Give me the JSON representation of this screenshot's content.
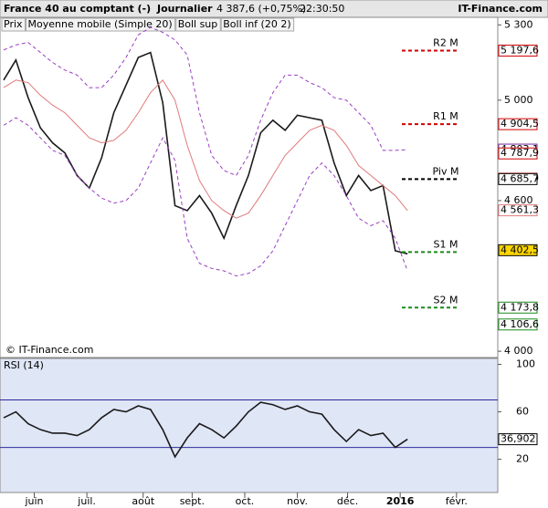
{
  "header": {
    "title": "France 40 au comptant (-)",
    "period": "Journalier",
    "quote": "4 387,6 (+0,75%)",
    "time": "22:30:50",
    "site": "IT-Finance.com"
  },
  "chart_data": [
    {
      "type": "line",
      "watermark": "© IT-Finance.com",
      "xlim": [
        0,
        40
      ],
      "xticks": [
        {
          "value": 2.5,
          "label": "juin"
        },
        {
          "value": 6.8,
          "label": "juil."
        },
        {
          "value": 11.4,
          "label": "août"
        },
        {
          "value": 15.4,
          "label": "sept."
        },
        {
          "value": 19.7,
          "label": "oct."
        },
        {
          "value": 24,
          "label": "nov."
        },
        {
          "value": 28.1,
          "label": "déc."
        },
        {
          "value": 32.4,
          "label": "2016"
        },
        {
          "value": 37,
          "label": "févr."
        }
      ],
      "ylim": [
        3975,
        5330
      ],
      "yticks": [
        {
          "value": 5300,
          "label": "5 300"
        },
        {
          "value": 5000,
          "label": "5 000"
        },
        {
          "value": 4600,
          "label": "4 600"
        },
        {
          "value": 4000,
          "label": "4 000"
        }
      ],
      "series": [
        {
          "name": "Prix",
          "color": "#1a1a1a",
          "values": [
            5080,
            5160,
            5010,
            4890,
            4830,
            4790,
            4700,
            4650,
            4770,
            4950,
            5060,
            5170,
            5190,
            4990,
            4580,
            4560,
            4620,
            4550,
            4450,
            4580,
            4700,
            4870,
            4920,
            4880,
            4940,
            4930,
            4920,
            4750,
            4620,
            4700,
            4640,
            4660,
            4400,
            4388
          ]
        },
        {
          "name": "Moyenne mobile (Simple 20)",
          "color": "#e07a7a",
          "values": [
            5050,
            5080,
            5070,
            5020,
            4980,
            4950,
            4900,
            4850,
            4830,
            4840,
            4880,
            4950,
            5030,
            5080,
            5000,
            4820,
            4680,
            4600,
            4560,
            4530,
            4550,
            4620,
            4700,
            4780,
            4830,
            4880,
            4900,
            4880,
            4820,
            4740,
            4700,
            4660,
            4620,
            4560
          ]
        },
        {
          "name": "Boll sup",
          "color": "#9a3fc0",
          "values": [
            5200,
            5220,
            5230,
            5190,
            5150,
            5120,
            5100,
            5050,
            5050,
            5100,
            5170,
            5260,
            5290,
            5270,
            5240,
            5180,
            4950,
            4780,
            4720,
            4700,
            4780,
            4920,
            5030,
            5100,
            5100,
            5070,
            5050,
            5010,
            5000,
            4950,
            4900,
            4800,
            4800,
            4803
          ]
        },
        {
          "name": "Boll inf (20 2)",
          "color": "#9a3fc0",
          "values": [
            4900,
            4930,
            4900,
            4850,
            4800,
            4780,
            4700,
            4650,
            4610,
            4590,
            4600,
            4650,
            4750,
            4850,
            4760,
            4450,
            4350,
            4330,
            4320,
            4300,
            4310,
            4340,
            4400,
            4500,
            4600,
            4700,
            4750,
            4700,
            4620,
            4530,
            4500,
            4520,
            4450,
            4320
          ]
        }
      ],
      "levels": [
        {
          "name": "R2 M",
          "value": 5197.6,
          "color": "#d00000"
        },
        {
          "name": "R1 M",
          "value": 4904.5,
          "color": "#d00000"
        },
        {
          "name": "Piv M",
          "value": 4685.7,
          "color": "#000000"
        },
        {
          "name": "S1 M",
          "value": 4395,
          "color": "#1a8a1a"
        },
        {
          "name": "S2 M",
          "value": 4173.8,
          "color": "#1a8a1a"
        }
      ],
      "axis_markers": [
        {
          "value": 5197.6,
          "label": "5 197,6",
          "color": "#d00000"
        },
        {
          "value": 4904.5,
          "label": "4 904,5",
          "color": "#d00000"
        },
        {
          "value": 4803.1,
          "label": "4 803,1",
          "color": "#7a2aa0"
        },
        {
          "value": 4787.9,
          "label": "4 787,9",
          "color": "#d00000"
        },
        {
          "value": 4687,
          "label": "4 687,0",
          "color": "#d00000"
        },
        {
          "value": 4685.7,
          "label": "4 685,7",
          "color": "#000000"
        },
        {
          "value": 4561.3,
          "label": "4 561,3",
          "color": "#e07a7a"
        },
        {
          "value": 4402.5,
          "label": "4 402,5",
          "color": "#000000",
          "background": "#ffd600"
        },
        {
          "value": 4173.8,
          "label": "4 173,8",
          "color": "#1a8a1a"
        },
        {
          "value": 4106.6,
          "label": "4 106,6",
          "color": "#1a8a1a"
        }
      ]
    },
    {
      "type": "line",
      "ylim": [
        -8,
        105
      ],
      "yticks": [
        100,
        60,
        20
      ],
      "levels": [
        70,
        30
      ],
      "series": [
        {
          "name": "RSI (14)",
          "color": "#1a1a1a",
          "values": [
            55,
            60,
            50,
            45,
            42,
            42,
            40,
            45,
            55,
            62,
            60,
            65,
            62,
            45,
            22,
            38,
            50,
            45,
            38,
            48,
            60,
            68,
            66,
            62,
            65,
            60,
            58,
            45,
            35,
            45,
            40,
            42,
            30,
            36.902
          ]
        }
      ],
      "value_labels": [
        "36,902"
      ]
    }
  ]
}
